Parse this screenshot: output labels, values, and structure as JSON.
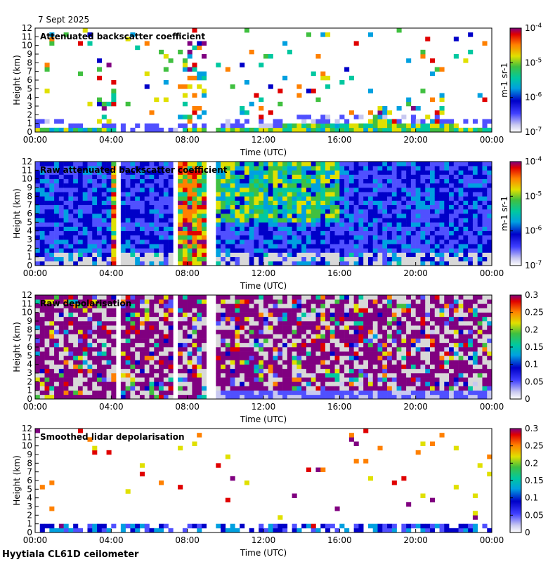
{
  "figure": {
    "date": "7 Sept 2025",
    "footer": "Hyytiala CL61D ceilometer"
  },
  "chart_data": [
    {
      "type": "heatmap",
      "title": "Attenuated backscatter coefficient",
      "xlabel": "Time (UTC)",
      "ylabel": "Height (km)",
      "xticks": [
        "00:00",
        "04:00",
        "08:00",
        "12:00",
        "16:00",
        "20:00",
        "00:00"
      ],
      "yticks": [
        "0",
        "1",
        "2",
        "3",
        "4",
        "5",
        "6",
        "7",
        "8",
        "9",
        "10",
        "11",
        "12"
      ],
      "ylim": [
        0,
        12
      ],
      "colorbar": {
        "scale": "log",
        "range": [
          1e-07,
          0.0001
        ],
        "ticks": [
          "10-7",
          "10-6",
          "10-5",
          "10-4"
        ],
        "label": "m-1 sr-1",
        "colormap": "rainbow"
      },
      "features": {
        "boundary_layer_top_km": [
          [
            0,
            0.4
          ],
          [
            6,
            0.2
          ],
          [
            9.5,
            0.3
          ],
          [
            12,
            0.6
          ],
          [
            14,
            0.9
          ],
          [
            16,
            1.1
          ],
          [
            18,
            1.3
          ],
          [
            20,
            1.2
          ],
          [
            22,
            0.8
          ],
          [
            24,
            0.5
          ]
        ],
        "cloud_patches": [
          [
            3.3,
            4.3,
            8.2
          ],
          [
            7.4,
            8.9,
            10.5
          ],
          [
            11.5,
            12.0,
            3.5
          ],
          [
            17.7,
            21.5,
            3.0
          ]
        ],
        "data_gaps_h": [
          [
            1.0,
            1.1
          ],
          [
            4.3,
            4.4
          ],
          [
            7.4,
            7.5
          ],
          [
            8.9,
            9.4
          ]
        ]
      }
    },
    {
      "type": "heatmap",
      "title": "Raw attenuated backscatter coefficient",
      "xlabel": "Time (UTC)",
      "ylabel": "Height (km)",
      "xticks": [
        "00:00",
        "04:00",
        "08:00",
        "12:00",
        "16:00",
        "20:00",
        "00:00"
      ],
      "yticks": [
        "0",
        "1",
        "2",
        "3",
        "4",
        "5",
        "6",
        "7",
        "8",
        "9",
        "10",
        "11",
        "12"
      ],
      "ylim": [
        0,
        12
      ],
      "colorbar": {
        "scale": "log",
        "range": [
          1e-07,
          0.0001
        ],
        "ticks": [
          "10-7",
          "10-6",
          "10-5",
          "10-4"
        ],
        "label": "m-1 sr-1",
        "colormap": "rainbow"
      },
      "features": {
        "noisy_columns_h": [
          [
            4.0,
            4.3
          ],
          [
            7.4,
            7.9
          ],
          [
            8.0,
            8.9
          ]
        ],
        "data_gaps_h": [
          [
            1.0,
            1.1
          ],
          [
            4.3,
            4.4
          ],
          [
            7.3,
            7.4
          ],
          [
            8.9,
            9.4
          ]
        ]
      }
    },
    {
      "type": "heatmap",
      "title": "Raw depolarisation",
      "xlabel": "Time (UTC)",
      "ylabel": "Height (km)",
      "xticks": [
        "00:00",
        "04:00",
        "08:00",
        "12:00",
        "16:00",
        "20:00",
        "00:00"
      ],
      "yticks": [
        "0",
        "1",
        "2",
        "3",
        "4",
        "5",
        "6",
        "7",
        "8",
        "9",
        "10",
        "11",
        "12"
      ],
      "ylim": [
        0,
        12
      ],
      "colorbar": {
        "scale": "linear",
        "range": [
          0,
          0.3
        ],
        "ticks": [
          "0",
          "0.05",
          "0.1",
          "0.15",
          "0.2",
          "0.25",
          "0.3"
        ],
        "label": "",
        "colormap": "rainbow"
      },
      "features": {
        "data_gaps_h": [
          [
            1.0,
            1.1
          ],
          [
            4.3,
            4.4
          ],
          [
            7.3,
            7.4
          ],
          [
            8.9,
            9.4
          ]
        ]
      }
    },
    {
      "type": "heatmap",
      "title": "Smoothed lidar depolarisation",
      "xlabel": "Time (UTC)",
      "ylabel": "Height (km)",
      "xticks": [
        "00:00",
        "04:00",
        "08:00",
        "12:00",
        "16:00",
        "20:00",
        "00:00"
      ],
      "yticks": [
        "0",
        "1",
        "2",
        "3",
        "4",
        "5",
        "6",
        "7",
        "8",
        "9",
        "10",
        "11",
        "12"
      ],
      "ylim": [
        0,
        12
      ],
      "colorbar": {
        "scale": "linear",
        "range": [
          0,
          0.3
        ],
        "ticks": [
          "0",
          "0.05",
          "0.1",
          "0.15",
          "0.2",
          "0.25",
          "0.3"
        ],
        "label": "",
        "colormap": "rainbow"
      },
      "features": {
        "data_gaps_h": [
          [
            1.0,
            1.1
          ],
          [
            4.3,
            4.4
          ],
          [
            7.4,
            7.5
          ],
          [
            8.9,
            9.4
          ]
        ]
      }
    }
  ]
}
